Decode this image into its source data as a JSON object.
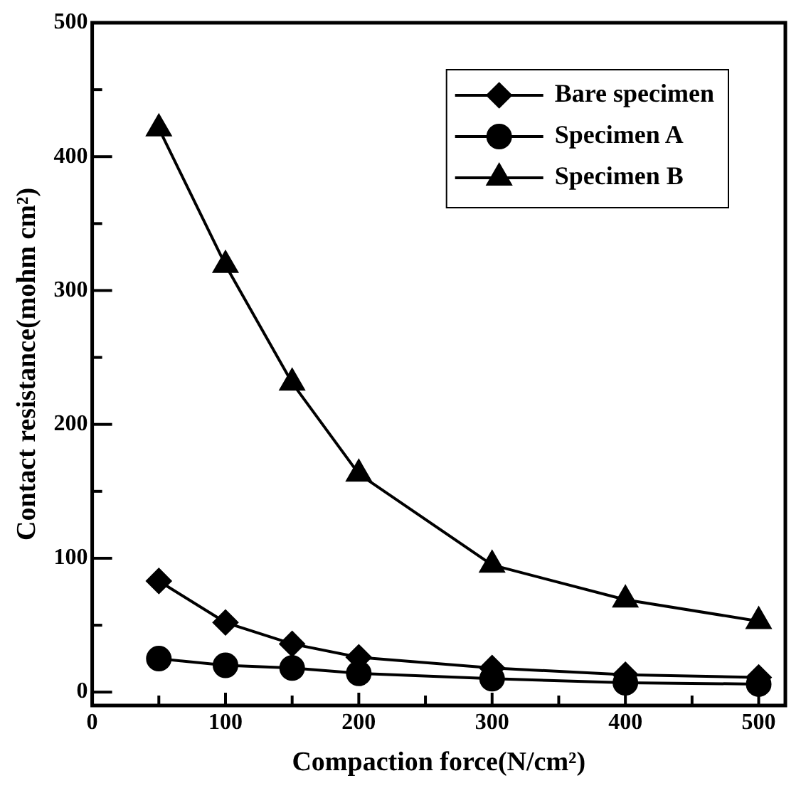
{
  "chart_data": {
    "type": "line",
    "xlabel": "Compaction force(N/cm²)",
    "ylabel": "Contact resistance(mohm cm²)",
    "x": [
      50,
      100,
      150,
      200,
      300,
      400,
      500
    ],
    "series": [
      {
        "name": "Bare specimen",
        "color": "#000000",
        "marker": "diamond",
        "values": [
          83,
          52,
          36,
          26,
          18,
          13,
          11
        ]
      },
      {
        "name": "Specimen A",
        "color": "#000000",
        "marker": "circle",
        "values": [
          25,
          20,
          18,
          14,
          10,
          7,
          6
        ]
      },
      {
        "name": "Specimen B",
        "color": "#000000",
        "marker": "triangle",
        "values": [
          421,
          319,
          231,
          163,
          95,
          69,
          53
        ]
      }
    ],
    "xlim": [
      0,
      520
    ],
    "xticks": [
      0,
      {
        "value": 50,
        "label": null
      },
      100,
      {
        "value": 150,
        "label": null
      },
      200,
      {
        "value": 250,
        "label": null
      },
      300,
      {
        "value": 350,
        "label": null
      },
      400,
      {
        "value": 450,
        "label": null
      },
      500
    ],
    "ylim": [
      -10,
      500
    ],
    "yticks": [
      0,
      {
        "value": 50,
        "label": null
      },
      100,
      {
        "value": 150,
        "label": null
      },
      200,
      {
        "value": 250,
        "label": null
      },
      300,
      {
        "value": 350,
        "label": null
      },
      400,
      {
        "value": 450,
        "label": null
      },
      500
    ],
    "grid": false,
    "legend": "top right",
    "line_style": "solid"
  }
}
